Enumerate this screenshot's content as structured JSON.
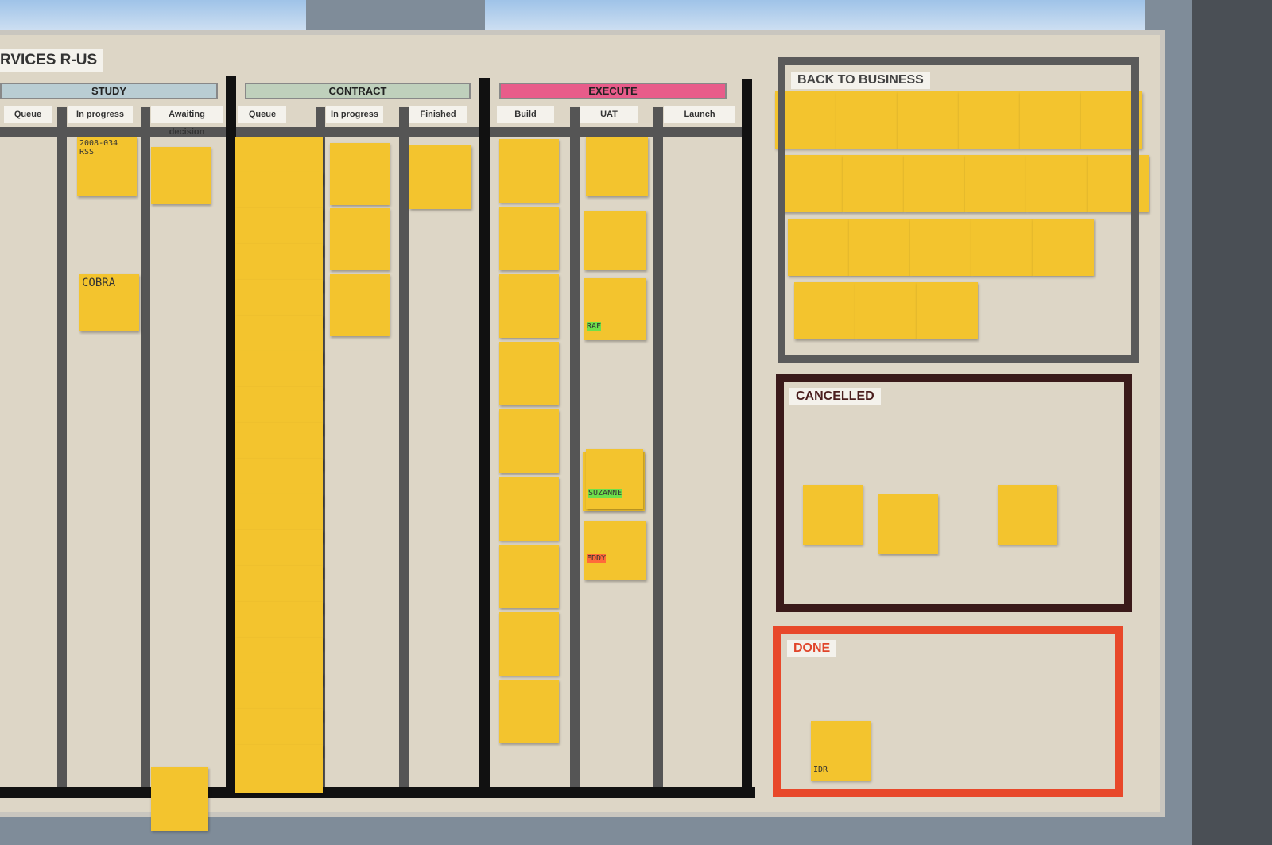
{
  "board_title": "RVICES R-US",
  "phases": [
    {
      "label": "STUDY",
      "color": "#b9cdd3",
      "columns": [
        "Queue",
        "In progress",
        "Awaiting decision"
      ]
    },
    {
      "label": "CONTRACT",
      "color": "#bfd0bc",
      "columns": [
        "Queue",
        "In progress",
        "Finished"
      ]
    },
    {
      "label": "EXECUTE",
      "color": "#e85c8a",
      "columns": [
        "Build",
        "UAT",
        "Launch"
      ]
    }
  ],
  "boxes": [
    {
      "label": "BACK TO BUSINESS",
      "color": "#555555"
    },
    {
      "label": "CANCELLED",
      "color": "#3a1a1a"
    },
    {
      "label": "DONE",
      "color": "#e8482a"
    }
  ],
  "notes": {
    "study_progress": "2008-034 RSS",
    "cobra": "COBRA",
    "suzanne": "SUZANNE",
    "raf": "RAF",
    "eddy": "EDDY",
    "idr": "IDR"
  }
}
